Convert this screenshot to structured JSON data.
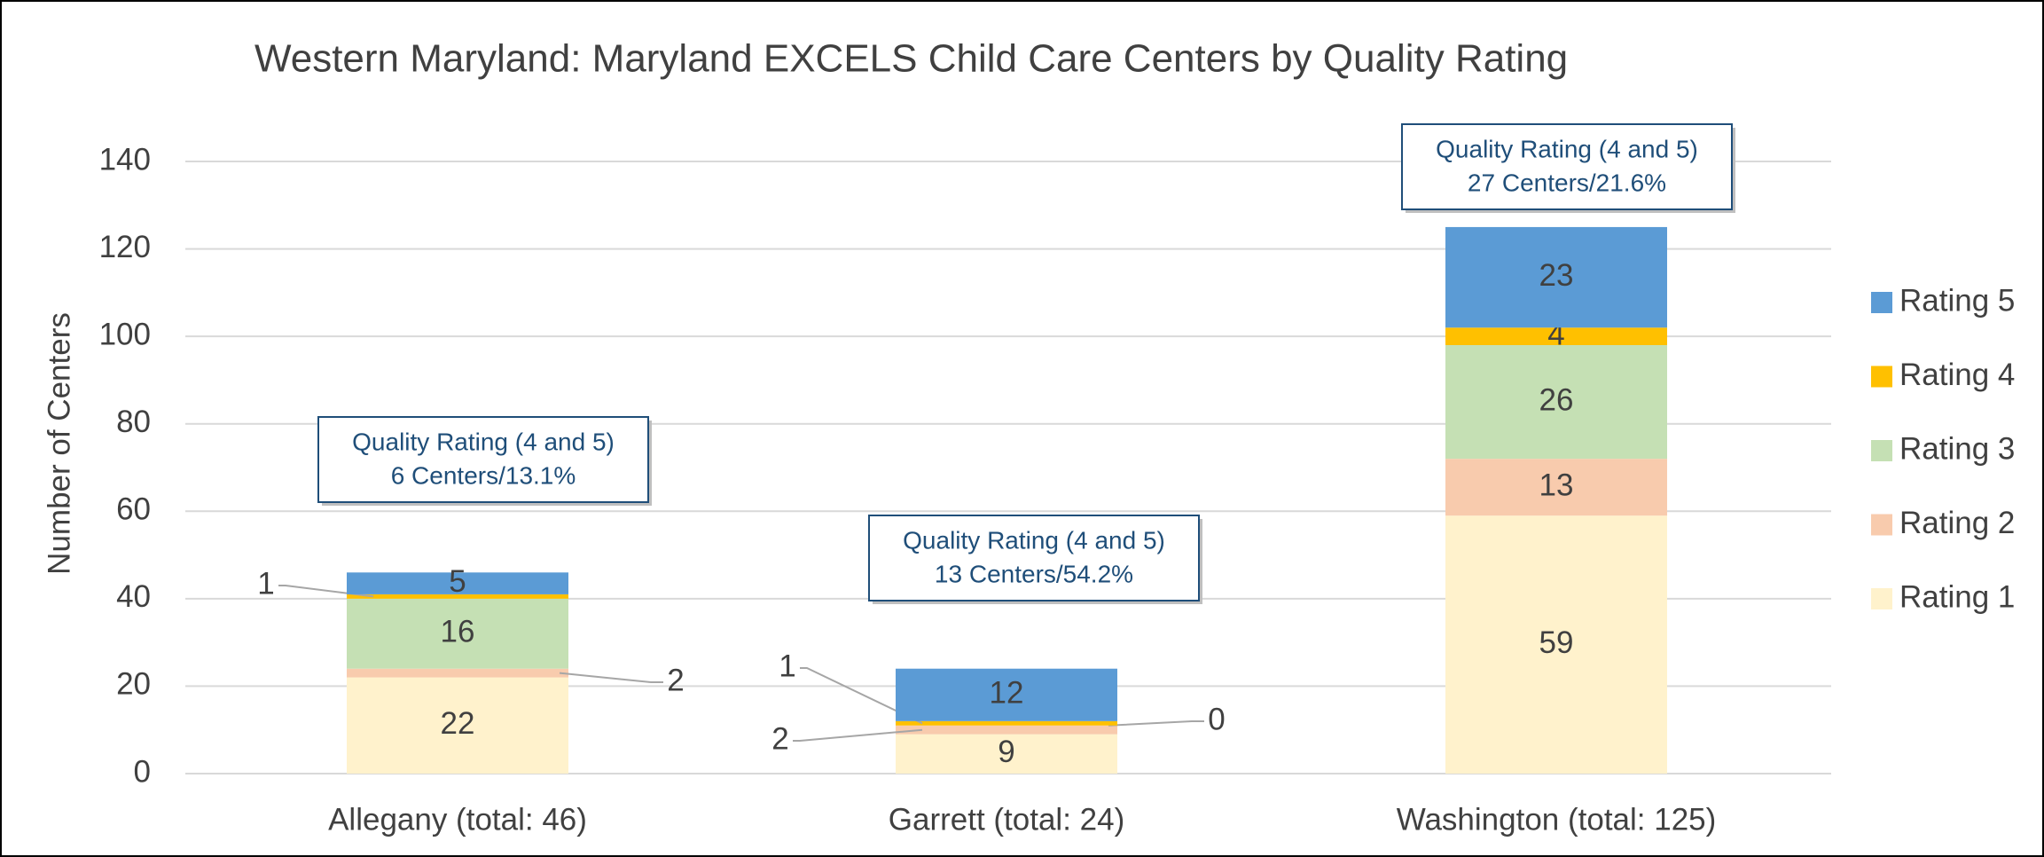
{
  "chart_data": {
    "type": "stacked_bar",
    "title": "Western Maryland: Maryland EXCELS Child Care Centers by Quality Rating",
    "ylabel": "Number of Centers",
    "categories": [
      "Allegany (total: 46)",
      "Garrett (total: 24)",
      "Washington (total: 125)"
    ],
    "series": [
      {
        "name": "Rating 1",
        "color": "#fff2cc",
        "values": [
          22,
          9,
          59
        ]
      },
      {
        "name": "Rating 2",
        "color": "#f8cbad",
        "values": [
          2,
          2,
          13
        ]
      },
      {
        "name": "Rating 3",
        "color": "#c5e0b4",
        "values": [
          16,
          0,
          26
        ]
      },
      {
        "name": "Rating 4",
        "color": "#ffc000",
        "values": [
          1,
          1,
          4
        ]
      },
      {
        "name": "Rating 5",
        "color": "#5b9bd5",
        "values": [
          5,
          12,
          23
        ]
      }
    ],
    "ylim": [
      0,
      140
    ],
    "yticks": [
      0,
      20,
      40,
      60,
      80,
      100,
      120,
      140
    ],
    "grid": true,
    "legend": "right",
    "annotations": [
      {
        "lines": [
          "Quality Rating (4 and 5)",
          "6 Centers/13.1%"
        ]
      },
      {
        "lines": [
          "Quality Rating (4 and 5)",
          "13 Centers/54.2%"
        ]
      },
      {
        "lines": [
          "Quality Rating (4 and 5)",
          "27 Centers/21.6%"
        ]
      }
    ]
  }
}
